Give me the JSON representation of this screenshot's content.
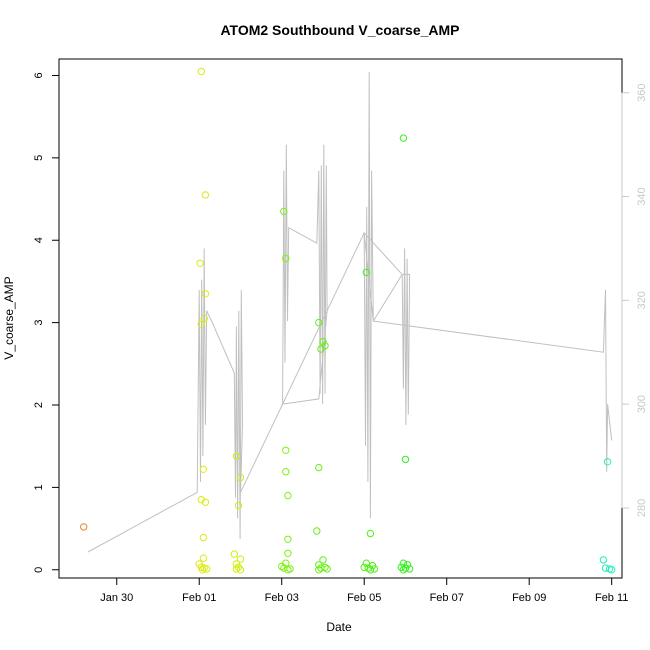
{
  "chart_data": {
    "type": "scatter",
    "title": "ATOM2 Southbound V_coarse_AMP",
    "xlabel": "Date",
    "ylabel": "V_coarse_AMP",
    "x_ticks": [
      "Jan 30",
      "Feb 01",
      "Feb 03",
      "Feb 05",
      "Feb 07",
      "Feb 09",
      "Feb 11"
    ],
    "x_tick_days": [
      30,
      32,
      34,
      36,
      38,
      40,
      42
    ],
    "xlim_days": [
      28.6,
      42.25
    ],
    "ylim": [
      -0.1,
      6.2
    ],
    "y_ticks": [
      0,
      1,
      2,
      3,
      4,
      5,
      6
    ],
    "y2_ticks": [
      280,
      300,
      320,
      340,
      360
    ],
    "y2lim": [
      266.5,
      366.5
    ],
    "grid": false,
    "points": [
      {
        "day": 29.2,
        "y": 0.52,
        "color": "#e8882a"
      },
      {
        "day": 32.05,
        "y": 6.05,
        "color": "#dbea10"
      },
      {
        "day": 32.02,
        "y": 3.72,
        "color": "#dbea10"
      },
      {
        "day": 32.15,
        "y": 4.55,
        "color": "#dbea10"
      },
      {
        "day": 32.15,
        "y": 3.35,
        "color": "#dbea10"
      },
      {
        "day": 32.12,
        "y": 3.05,
        "color": "#dbea10"
      },
      {
        "day": 32.05,
        "y": 2.98,
        "color": "#dbea10"
      },
      {
        "day": 32.1,
        "y": 1.22,
        "color": "#dbea10"
      },
      {
        "day": 32.05,
        "y": 0.85,
        "color": "#dbea10"
      },
      {
        "day": 32.15,
        "y": 0.82,
        "color": "#dbea10"
      },
      {
        "day": 32.1,
        "y": 0.39,
        "color": "#dbea10"
      },
      {
        "day": 32.1,
        "y": 0.14,
        "color": "#dbea10"
      },
      {
        "day": 32.0,
        "y": 0.07,
        "color": "#dbea10"
      },
      {
        "day": 32.05,
        "y": 0.03,
        "color": "#dbea10"
      },
      {
        "day": 32.12,
        "y": 0.02,
        "color": "#dbea10"
      },
      {
        "day": 32.18,
        "y": 0.01,
        "color": "#dbea10"
      },
      {
        "day": 32.08,
        "y": 0.0,
        "color": "#dbea10"
      },
      {
        "day": 32.9,
        "y": 1.38,
        "color": "#cfee10"
      },
      {
        "day": 33.0,
        "y": 1.12,
        "color": "#cfee10"
      },
      {
        "day": 32.95,
        "y": 0.78,
        "color": "#cfee10"
      },
      {
        "day": 32.85,
        "y": 0.19,
        "color": "#cfee10"
      },
      {
        "day": 33.0,
        "y": 0.13,
        "color": "#cfee10"
      },
      {
        "day": 32.9,
        "y": 0.07,
        "color": "#cfee10"
      },
      {
        "day": 32.95,
        "y": 0.03,
        "color": "#cfee10"
      },
      {
        "day": 32.9,
        "y": 0.01,
        "color": "#cfee10"
      },
      {
        "day": 33.0,
        "y": 0.0,
        "color": "#cfee10"
      },
      {
        "day": 34.05,
        "y": 4.35,
        "color": "#7ff012"
      },
      {
        "day": 34.1,
        "y": 3.78,
        "color": "#7ff012"
      },
      {
        "day": 34.1,
        "y": 1.45,
        "color": "#7ff012"
      },
      {
        "day": 34.1,
        "y": 1.19,
        "color": "#7ff012"
      },
      {
        "day": 34.15,
        "y": 0.9,
        "color": "#7ff012"
      },
      {
        "day": 34.15,
        "y": 0.37,
        "color": "#7ff012"
      },
      {
        "day": 34.15,
        "y": 0.2,
        "color": "#7ff012"
      },
      {
        "day": 34.1,
        "y": 0.08,
        "color": "#7ff012"
      },
      {
        "day": 34.0,
        "y": 0.04,
        "color": "#7ff012"
      },
      {
        "day": 34.05,
        "y": 0.02,
        "color": "#7ff012"
      },
      {
        "day": 34.2,
        "y": 0.01,
        "color": "#7ff012"
      },
      {
        "day": 34.15,
        "y": 0.0,
        "color": "#7ff012"
      },
      {
        "day": 34.9,
        "y": 3.0,
        "color": "#66f014"
      },
      {
        "day": 35.0,
        "y": 2.77,
        "color": "#66f014"
      },
      {
        "day": 35.05,
        "y": 2.72,
        "color": "#66f014"
      },
      {
        "day": 34.95,
        "y": 2.68,
        "color": "#66f014"
      },
      {
        "day": 34.9,
        "y": 1.24,
        "color": "#66f014"
      },
      {
        "day": 34.85,
        "y": 0.47,
        "color": "#66f014"
      },
      {
        "day": 35.0,
        "y": 0.12,
        "color": "#66f014"
      },
      {
        "day": 34.9,
        "y": 0.06,
        "color": "#66f014"
      },
      {
        "day": 35.05,
        "y": 0.03,
        "color": "#66f014"
      },
      {
        "day": 34.95,
        "y": 0.02,
        "color": "#66f014"
      },
      {
        "day": 35.1,
        "y": 0.01,
        "color": "#66f014"
      },
      {
        "day": 34.9,
        "y": 0.0,
        "color": "#66f014"
      },
      {
        "day": 36.05,
        "y": 3.61,
        "color": "#4ef016"
      },
      {
        "day": 36.15,
        "y": 0.44,
        "color": "#4ef016"
      },
      {
        "day": 36.05,
        "y": 0.08,
        "color": "#4ef016"
      },
      {
        "day": 36.2,
        "y": 0.05,
        "color": "#4ef016"
      },
      {
        "day": 36.0,
        "y": 0.03,
        "color": "#4ef016"
      },
      {
        "day": 36.1,
        "y": 0.02,
        "color": "#4ef016"
      },
      {
        "day": 36.25,
        "y": 0.01,
        "color": "#4ef016"
      },
      {
        "day": 36.15,
        "y": 0.0,
        "color": "#4ef016"
      },
      {
        "day": 36.95,
        "y": 5.24,
        "color": "#2ff21a"
      },
      {
        "day": 37.0,
        "y": 1.34,
        "color": "#2ff21a"
      },
      {
        "day": 36.95,
        "y": 0.08,
        "color": "#2ff21a"
      },
      {
        "day": 37.05,
        "y": 0.06,
        "color": "#2ff21a"
      },
      {
        "day": 36.9,
        "y": 0.03,
        "color": "#2ff21a"
      },
      {
        "day": 37.0,
        "y": 0.02,
        "color": "#2ff21a"
      },
      {
        "day": 37.1,
        "y": 0.01,
        "color": "#2ff21a"
      },
      {
        "day": 36.95,
        "y": 0.0,
        "color": "#2ff21a"
      },
      {
        "day": 41.8,
        "y": 0.12,
        "color": "#22eebb"
      },
      {
        "day": 41.9,
        "y": 1.31,
        "color": "#22eebb"
      },
      {
        "day": 41.85,
        "y": 0.02,
        "color": "#22eebb"
      },
      {
        "day": 41.95,
        "y": 0.01,
        "color": "#22eebb"
      },
      {
        "day": 42.0,
        "y": 0.0,
        "color": "#22eebb"
      }
    ],
    "secondary_line": {
      "color": "#c0c0c0",
      "points": [
        [
          29.3,
          271.5
        ],
        [
          31.95,
          283
        ],
        [
          32.0,
          322
        ],
        [
          32.03,
          285
        ],
        [
          32.06,
          324
        ],
        [
          32.09,
          290
        ],
        [
          32.12,
          330
        ],
        [
          32.15,
          296
        ],
        [
          32.18,
          318
        ],
        [
          32.3,
          316
        ],
        [
          32.85,
          306
        ],
        [
          32.88,
          282
        ],
        [
          32.9,
          315
        ],
        [
          32.93,
          278
        ],
        [
          32.96,
          318
        ],
        [
          32.99,
          274
        ],
        [
          33.02,
          322
        ],
        [
          33.05,
          296
        ],
        [
          33.0,
          283
        ],
        [
          34.02,
          300
        ],
        [
          34.05,
          345
        ],
        [
          34.08,
          308
        ],
        [
          34.11,
          350
        ],
        [
          34.14,
          316
        ],
        [
          34.17,
          334
        ],
        [
          34.85,
          331
        ],
        [
          34.9,
          345
        ],
        [
          34.93,
          302
        ],
        [
          34.96,
          346
        ],
        [
          34.99,
          300
        ],
        [
          35.02,
          350
        ],
        [
          35.05,
          302
        ],
        [
          35.08,
          346
        ],
        [
          35.1,
          318
        ],
        [
          34.9,
          301
        ],
        [
          34.02,
          300
        ],
        [
          36.0,
          333
        ],
        [
          36.03,
          292
        ],
        [
          36.06,
          338
        ],
        [
          36.09,
          285
        ],
        [
          36.12,
          364
        ],
        [
          36.15,
          278
        ],
        [
          36.18,
          345
        ],
        [
          36.22,
          316
        ],
        [
          36.0,
          333
        ],
        [
          36.92,
          325
        ],
        [
          36.95,
          303
        ],
        [
          36.98,
          330
        ],
        [
          37.01,
          296
        ],
        [
          37.04,
          328
        ],
        [
          37.07,
          298
        ],
        [
          37.1,
          325
        ],
        [
          36.92,
          325
        ],
        [
          36.22,
          316
        ],
        [
          41.8,
          310
        ],
        [
          41.85,
          322
        ],
        [
          41.88,
          287
        ],
        [
          41.9,
          300
        ],
        [
          42.0,
          293
        ]
      ]
    }
  }
}
